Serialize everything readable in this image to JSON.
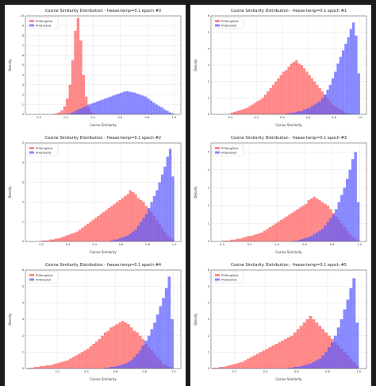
{
  "colors": {
    "background": "#1b1b1b",
    "series_pos_img2txt": "#ff5a5a",
    "series_pos_txt2txt": "#5a5aff",
    "overlap": "#8a2fb0",
    "grid": "#e5e5e5"
  },
  "chart_data": [
    {
      "type": "bar",
      "title": "Cosine Similarity Distribution - freeze-temp=0.1 epoch #0",
      "xlabel": "Cosine Similarity",
      "ylabel": "Density",
      "xlim": [
        -0.1,
        1.05
      ],
      "ylim": [
        0,
        10
      ],
      "yticks": [
        0,
        1,
        2,
        3,
        4,
        5,
        6,
        7,
        8,
        9,
        10
      ],
      "xticks": [
        0.0,
        0.2,
        0.4,
        0.6,
        0.8,
        1.0
      ],
      "xtick_labels": [
        "0.0",
        "0.2",
        "0.4",
        "0.6",
        "0.8",
        "1.0"
      ],
      "bin_edges": [
        0.1,
        0.12,
        0.14,
        0.16,
        0.18,
        0.2,
        0.22,
        0.24,
        0.26,
        0.28,
        0.3,
        0.32,
        0.34,
        0.36,
        0.38,
        0.4,
        0.42,
        0.44,
        0.46,
        0.48,
        0.5,
        0.52,
        0.54,
        0.56,
        0.58,
        0.6,
        0.62,
        0.64,
        0.66,
        0.68,
        0.7,
        0.72,
        0.74,
        0.76,
        0.78,
        0.8,
        0.82,
        0.84,
        0.86,
        0.88,
        0.9,
        0.92,
        0.94,
        0.96,
        0.98,
        1.0
      ],
      "series": [
        {
          "name": "POSimg2txt",
          "values": [
            0.05,
            0.1,
            0.2,
            0.4,
            0.8,
            1.6,
            3.0,
            5.5,
            8.5,
            9.8,
            7.5,
            4.0,
            1.8,
            0.7,
            0.2,
            0.05,
            0,
            0,
            0,
            0,
            0,
            0,
            0,
            0,
            0,
            0,
            0,
            0,
            0,
            0,
            0,
            0,
            0,
            0,
            0,
            0,
            0,
            0,
            0,
            0,
            0,
            0,
            0,
            0,
            0
          ]
        },
        {
          "name": "POStxt2txt",
          "values": [
            0,
            0,
            0,
            0,
            0,
            0.05,
            0.1,
            0.2,
            0.35,
            0.5,
            0.6,
            0.75,
            0.85,
            1.0,
            1.1,
            1.2,
            1.3,
            1.4,
            1.5,
            1.6,
            1.7,
            1.8,
            1.9,
            2.0,
            2.1,
            2.2,
            2.3,
            2.35,
            2.3,
            2.25,
            2.2,
            2.1,
            2.0,
            1.9,
            1.8,
            1.6,
            1.4,
            1.2,
            1.0,
            0.85,
            0.7,
            0.5,
            0.35,
            0.2,
            0.1
          ]
        }
      ]
    },
    {
      "type": "bar",
      "title": "Cosine Similarity Distribution - freeze-temp=0.1 epoch #1",
      "xlabel": "Cosine Similarity",
      "ylabel": "Density",
      "xlim": [
        -0.15,
        1.05
      ],
      "ylim": [
        0,
        6
      ],
      "yticks": [
        0,
        1,
        2,
        3,
        4,
        5,
        6
      ],
      "xticks": [
        0.0,
        0.2,
        0.4,
        0.6,
        0.8,
        1.0
      ],
      "xtick_labels": [
        "0.0",
        "0.2",
        "0.4",
        "0.6",
        "0.8",
        "1.0"
      ],
      "bin_edges": [
        0.0,
        0.02,
        0.04,
        0.06,
        0.08,
        0.1,
        0.12,
        0.14,
        0.16,
        0.18,
        0.2,
        0.22,
        0.24,
        0.26,
        0.28,
        0.3,
        0.32,
        0.34,
        0.36,
        0.38,
        0.4,
        0.42,
        0.44,
        0.46,
        0.48,
        0.5,
        0.52,
        0.54,
        0.56,
        0.58,
        0.6,
        0.62,
        0.64,
        0.66,
        0.68,
        0.7,
        0.72,
        0.74,
        0.76,
        0.78,
        0.8,
        0.82,
        0.84,
        0.86,
        0.88,
        0.9,
        0.92,
        0.94,
        0.96,
        0.98,
        1.0
      ],
      "series": [
        {
          "name": "POSimg2txt",
          "values": [
            0.1,
            0.15,
            0.2,
            0.25,
            0.3,
            0.35,
            0.4,
            0.5,
            0.6,
            0.7,
            0.8,
            0.9,
            1.0,
            1.2,
            1.4,
            1.6,
            1.8,
            2.0,
            2.2,
            2.4,
            2.6,
            2.7,
            2.9,
            3.1,
            3.2,
            3.3,
            3.1,
            3.0,
            2.8,
            2.6,
            2.4,
            2.2,
            2.0,
            1.8,
            1.6,
            1.4,
            1.2,
            1.0,
            0.8,
            0.6,
            0.5,
            0.4,
            0.3,
            0.2,
            0.1,
            0.05,
            0,
            0,
            0,
            0
          ]
        },
        {
          "name": "POStxt2txt",
          "values": [
            0,
            0,
            0,
            0,
            0,
            0,
            0,
            0,
            0,
            0,
            0,
            0,
            0,
            0,
            0,
            0,
            0,
            0,
            0,
            0,
            0,
            0.05,
            0.05,
            0.1,
            0.1,
            0.15,
            0.2,
            0.2,
            0.3,
            0.35,
            0.4,
            0.5,
            0.6,
            0.7,
            0.8,
            1.0,
            1.2,
            1.5,
            1.8,
            2.2,
            2.6,
            3.1,
            3.5,
            3.9,
            4.3,
            4.7,
            5.2,
            5.6,
            4.8,
            2.5
          ]
        }
      ]
    },
    {
      "type": "bar",
      "title": "Cosine Similarity Distribution - freeze-temp=0.1 epoch #2",
      "xlabel": "Cosine Similarity",
      "ylabel": "Density",
      "xlim": [
        -0.12,
        1.05
      ],
      "ylim": [
        0,
        5
      ],
      "yticks": [
        0,
        1,
        2,
        3,
        4,
        5
      ],
      "xticks": [
        0.0,
        0.2,
        0.4,
        0.6,
        0.8,
        1.0
      ],
      "xtick_labels": [
        "0.0",
        "0.2",
        "0.4",
        "0.6",
        "0.8",
        "1.0"
      ],
      "bin_edges": [
        0.0,
        0.02,
        0.04,
        0.06,
        0.08,
        0.1,
        0.12,
        0.14,
        0.16,
        0.18,
        0.2,
        0.22,
        0.24,
        0.26,
        0.28,
        0.3,
        0.32,
        0.34,
        0.36,
        0.38,
        0.4,
        0.42,
        0.44,
        0.46,
        0.48,
        0.5,
        0.52,
        0.54,
        0.56,
        0.58,
        0.6,
        0.62,
        0.64,
        0.66,
        0.68,
        0.7,
        0.72,
        0.74,
        0.76,
        0.78,
        0.8,
        0.82,
        0.84,
        0.86,
        0.88,
        0.9,
        0.92,
        0.94,
        0.96,
        0.98,
        1.0
      ],
      "series": [
        {
          "name": "POSimg2txt",
          "values": [
            0.05,
            0.05,
            0.05,
            0.1,
            0.1,
            0.15,
            0.15,
            0.2,
            0.25,
            0.3,
            0.35,
            0.4,
            0.45,
            0.5,
            0.6,
            0.7,
            0.8,
            0.9,
            1.0,
            1.1,
            1.2,
            1.3,
            1.4,
            1.5,
            1.6,
            1.7,
            1.8,
            1.9,
            2.0,
            2.1,
            2.2,
            2.3,
            2.4,
            2.6,
            2.5,
            2.4,
            2.2,
            2.1,
            2.0,
            1.8,
            1.6,
            1.5,
            1.3,
            1.1,
            0.9,
            0.7,
            0.5,
            0.3,
            0.2,
            0.1
          ]
        },
        {
          "name": "POStxt2txt",
          "values": [
            0,
            0,
            0,
            0,
            0,
            0,
            0,
            0,
            0,
            0,
            0,
            0,
            0,
            0,
            0,
            0,
            0,
            0,
            0,
            0,
            0,
            0,
            0,
            0,
            0,
            0,
            0.05,
            0.1,
            0.1,
            0.15,
            0.2,
            0.25,
            0.3,
            0.4,
            0.5,
            0.6,
            0.8,
            1.0,
            1.2,
            1.4,
            1.7,
            2.0,
            2.3,
            2.6,
            3.0,
            3.4,
            3.8,
            4.3,
            4.7,
            3.3
          ]
        }
      ]
    },
    {
      "type": "bar",
      "title": "Cosine Similarity Distribution - freeze-temp=0.1 epoch #3",
      "xlabel": "Cosine Similarity",
      "ylabel": "Density",
      "xlim": [
        -0.08,
        1.05
      ],
      "ylim": [
        0,
        5.5
      ],
      "yticks": [
        0,
        1,
        2,
        3,
        4,
        5
      ],
      "xticks": [
        0.0,
        0.2,
        0.4,
        0.6,
        0.8,
        1.0
      ],
      "xtick_labels": [
        "0.0",
        "0.2",
        "0.4",
        "0.6",
        "0.8",
        "1.0"
      ],
      "bin_edges": [
        0.0,
        0.02,
        0.04,
        0.06,
        0.08,
        0.1,
        0.12,
        0.14,
        0.16,
        0.18,
        0.2,
        0.22,
        0.24,
        0.26,
        0.28,
        0.3,
        0.32,
        0.34,
        0.36,
        0.38,
        0.4,
        0.42,
        0.44,
        0.46,
        0.48,
        0.5,
        0.52,
        0.54,
        0.56,
        0.58,
        0.6,
        0.62,
        0.64,
        0.66,
        0.68,
        0.7,
        0.72,
        0.74,
        0.76,
        0.78,
        0.8,
        0.82,
        0.84,
        0.86,
        0.88,
        0.9,
        0.92,
        0.94,
        0.96,
        0.98,
        1.0
      ],
      "series": [
        {
          "name": "POSimg2txt",
          "values": [
            0.05,
            0.05,
            0.05,
            0.1,
            0.1,
            0.15,
            0.15,
            0.2,
            0.25,
            0.3,
            0.3,
            0.35,
            0.4,
            0.45,
            0.5,
            0.6,
            0.7,
            0.8,
            0.9,
            1.0,
            1.1,
            1.2,
            1.3,
            1.4,
            1.5,
            1.6,
            1.7,
            1.8,
            1.9,
            2.0,
            2.1,
            2.3,
            2.4,
            2.5,
            2.4,
            2.3,
            2.2,
            2.1,
            2.0,
            1.8,
            1.6,
            1.4,
            1.2,
            1.0,
            0.8,
            0.6,
            0.4,
            0.25,
            0.15,
            0.05
          ]
        },
        {
          "name": "POStxt2txt",
          "values": [
            0,
            0,
            0,
            0,
            0,
            0,
            0,
            0,
            0,
            0,
            0,
            0,
            0,
            0,
            0,
            0,
            0,
            0,
            0,
            0,
            0,
            0,
            0,
            0,
            0,
            0,
            0.05,
            0.05,
            0.1,
            0.15,
            0.2,
            0.25,
            0.3,
            0.4,
            0.5,
            0.6,
            0.7,
            0.9,
            1.1,
            1.3,
            1.5,
            1.8,
            2.2,
            2.6,
            3.0,
            3.5,
            4.0,
            4.6,
            5.0,
            2.2
          ]
        }
      ]
    },
    {
      "type": "bar",
      "title": "Cosine Similarity Distribution - freeze-temp=0.1 epoch #4",
      "xlabel": "Cosine Similarity",
      "ylabel": "Density",
      "xlim": [
        -0.02,
        1.05
      ],
      "ylim": [
        0,
        6
      ],
      "yticks": [
        0,
        1,
        2,
        3,
        4,
        5,
        6
      ],
      "xticks": [
        0.2,
        0.4,
        0.6,
        0.8,
        1.0
      ],
      "xtick_labels": [
        "0.2",
        "0.4",
        "0.6",
        "0.8",
        "1.0"
      ],
      "bin_edges": [
        0.0,
        0.02,
        0.04,
        0.06,
        0.08,
        0.1,
        0.12,
        0.14,
        0.16,
        0.18,
        0.2,
        0.22,
        0.24,
        0.26,
        0.28,
        0.3,
        0.32,
        0.34,
        0.36,
        0.38,
        0.4,
        0.42,
        0.44,
        0.46,
        0.48,
        0.5,
        0.52,
        0.54,
        0.56,
        0.58,
        0.6,
        0.62,
        0.64,
        0.66,
        0.68,
        0.7,
        0.72,
        0.74,
        0.76,
        0.78,
        0.8,
        0.82,
        0.84,
        0.86,
        0.88,
        0.9,
        0.92,
        0.94,
        0.96,
        0.98,
        1.0
      ],
      "series": [
        {
          "name": "POSimg2txt",
          "values": [
            0.05,
            0.05,
            0.1,
            0.1,
            0.15,
            0.15,
            0.2,
            0.2,
            0.25,
            0.3,
            0.35,
            0.4,
            0.45,
            0.5,
            0.6,
            0.7,
            0.8,
            0.9,
            1.0,
            1.1,
            1.2,
            1.35,
            1.5,
            1.65,
            1.8,
            2.0,
            2.2,
            2.3,
            2.5,
            2.6,
            2.7,
            2.8,
            2.9,
            2.8,
            2.7,
            2.5,
            2.3,
            2.2,
            2.0,
            1.8,
            1.5,
            1.3,
            1.1,
            0.9,
            0.7,
            0.5,
            0.3,
            0.2,
            0.1,
            0.05
          ]
        },
        {
          "name": "POStxt2txt",
          "values": [
            0,
            0,
            0,
            0,
            0,
            0,
            0,
            0,
            0,
            0,
            0,
            0,
            0,
            0,
            0,
            0,
            0,
            0,
            0,
            0,
            0,
            0,
            0,
            0,
            0,
            0,
            0.05,
            0.05,
            0.1,
            0.1,
            0.15,
            0.2,
            0.25,
            0.3,
            0.4,
            0.5,
            0.7,
            0.9,
            1.1,
            1.4,
            1.7,
            2.0,
            2.4,
            2.8,
            3.3,
            3.8,
            4.3,
            4.9,
            5.6,
            3.0
          ]
        }
      ]
    },
    {
      "type": "bar",
      "title": "Cosine Similarity Distribution - freeze-temp=0.1 epoch #5",
      "xlabel": "Cosine Similarity",
      "ylabel": "Density",
      "xlim": [
        0.05,
        1.05
      ],
      "ylim": [
        0,
        6
      ],
      "yticks": [
        0,
        1,
        2,
        3,
        4,
        5,
        6
      ],
      "xticks": [
        0.2,
        0.4,
        0.6,
        0.8,
        1.0
      ],
      "xtick_labels": [
        "0.2",
        "0.4",
        "0.6",
        "0.8",
        "1.0"
      ],
      "bin_edges": [
        0.06,
        0.08,
        0.1,
        0.12,
        0.14,
        0.16,
        0.18,
        0.2,
        0.22,
        0.24,
        0.26,
        0.28,
        0.3,
        0.32,
        0.34,
        0.36,
        0.38,
        0.4,
        0.42,
        0.44,
        0.46,
        0.48,
        0.5,
        0.52,
        0.54,
        0.56,
        0.58,
        0.6,
        0.62,
        0.64,
        0.66,
        0.68,
        0.7,
        0.72,
        0.74,
        0.76,
        0.78,
        0.8,
        0.82,
        0.84,
        0.86,
        0.88,
        0.9,
        0.92,
        0.94,
        0.96,
        0.98,
        1.0
      ],
      "series": [
        {
          "name": "POSimg2txt",
          "values": [
            0.05,
            0.05,
            0.1,
            0.1,
            0.15,
            0.2,
            0.25,
            0.3,
            0.35,
            0.4,
            0.5,
            0.6,
            0.7,
            0.8,
            0.9,
            1.0,
            1.1,
            1.2,
            1.3,
            1.4,
            1.5,
            1.6,
            1.7,
            1.8,
            1.9,
            2.0,
            2.2,
            2.4,
            2.6,
            2.8,
            3.0,
            3.2,
            3.0,
            2.8,
            2.6,
            2.4,
            2.2,
            2.0,
            1.8,
            1.6,
            1.4,
            1.2,
            1.0,
            0.8,
            0.6,
            0.4,
            0.2
          ]
        },
        {
          "name": "POStxt2txt",
          "values": [
            0,
            0,
            0,
            0,
            0,
            0,
            0,
            0,
            0,
            0,
            0,
            0,
            0,
            0,
            0,
            0,
            0,
            0,
            0,
            0,
            0,
            0,
            0,
            0,
            0.05,
            0.05,
            0.1,
            0.1,
            0.15,
            0.2,
            0.25,
            0.3,
            0.4,
            0.5,
            0.6,
            0.8,
            1.0,
            1.3,
            1.6,
            2.0,
            2.5,
            3.0,
            3.6,
            4.2,
            4.9,
            5.5,
            2.8
          ]
        }
      ]
    }
  ]
}
